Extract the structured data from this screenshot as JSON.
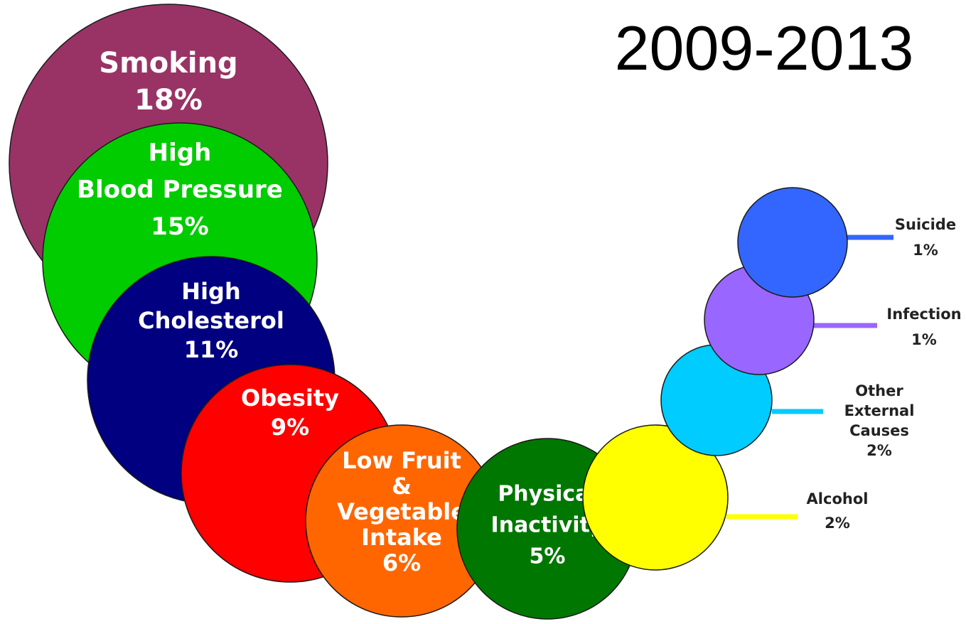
{
  "chart_data": {
    "type": "bubble",
    "title": "2009-2013",
    "unit": "%",
    "series": [
      {
        "lines": [
          "Smoking"
        ],
        "value": 18,
        "label": "18%",
        "color": "#993366"
      },
      {
        "lines": [
          "High",
          "Blood Pressure"
        ],
        "value": 15,
        "label": "15%",
        "color": "#00cc00"
      },
      {
        "lines": [
          "High",
          "Cholesterol"
        ],
        "value": 11,
        "label": "11%",
        "color": "#000080"
      },
      {
        "lines": [
          "Obesity"
        ],
        "value": 9,
        "label": "9%",
        "color": "#ff0000"
      },
      {
        "lines": [
          "Low Fruit",
          "&",
          "Vegetable",
          "Intake"
        ],
        "value": 6,
        "label": "6%",
        "color": "#ff6600"
      },
      {
        "lines": [
          "Physical",
          "Inactivity"
        ],
        "value": 5,
        "label": "5%",
        "color": "#007700"
      },
      {
        "lines": [
          "Alcohol"
        ],
        "value": 2,
        "label": "2%",
        "color": "#ffff00",
        "callout": true
      },
      {
        "lines": [
          "Other",
          "External",
          "Causes"
        ],
        "value": 2,
        "label": "2%",
        "color": "#00ccff",
        "callout": true
      },
      {
        "lines": [
          "Infection"
        ],
        "value": 1,
        "label": "1%",
        "color": "#9966ff",
        "callout": true
      },
      {
        "lines": [
          "Suicide"
        ],
        "value": 1,
        "label": "1%",
        "color": "#3366ff",
        "callout": true
      }
    ]
  }
}
